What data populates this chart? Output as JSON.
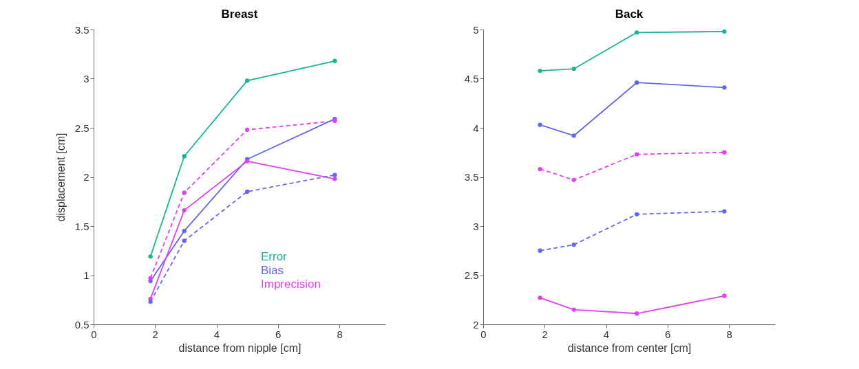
{
  "chart_data": [
    {
      "type": "line",
      "title": "Breast",
      "xlabel": "distance from nipple [cm]",
      "ylabel": "displacement [cm]",
      "x": [
        1.85,
        2.95,
        5,
        7.85
      ],
      "xlim": [
        0,
        9.5
      ],
      "xticks": [
        0,
        2,
        4,
        6,
        8
      ],
      "ylim": [
        0.5,
        3.5
      ],
      "yticks": [
        0.5,
        1,
        1.5,
        2,
        2.5,
        3,
        3.5
      ],
      "grid": false,
      "marker": "circle",
      "legend": "bottom right",
      "series": [
        {
          "name": "Error",
          "color": "#1ab394",
          "line_style": "solid",
          "values": [
            1.19,
            2.21,
            2.98,
            3.18
          ]
        },
        {
          "name": "Bias",
          "color": "#6366f0",
          "line_style": "solid",
          "values": [
            0.94,
            1.45,
            2.18,
            2.59
          ]
        },
        {
          "name": "Imprecision",
          "color": "#e040f0",
          "line_style": "solid",
          "values": [
            0.76,
            1.66,
            2.16,
            1.98
          ]
        },
        {
          "color": "#6366f0",
          "line_style": "dashed",
          "values": [
            0.73,
            1.35,
            1.85,
            2.02
          ]
        },
        {
          "color": "#e040f0",
          "line_style": "dashed",
          "values": [
            0.97,
            1.84,
            2.48,
            2.57
          ]
        }
      ]
    },
    {
      "type": "line",
      "title": "Back",
      "xlabel": "distance from center [cm]",
      "x": [
        1.85,
        2.95,
        5,
        7.85
      ],
      "xlim": [
        0,
        9.5
      ],
      "xticks": [
        0,
        2,
        4,
        6,
        8
      ],
      "ylim": [
        2,
        5
      ],
      "yticks": [
        2,
        2.5,
        3,
        3.5,
        4,
        4.5,
        5
      ],
      "grid": false,
      "marker": "circle",
      "series": [
        {
          "color": "#1ab394",
          "line_style": "solid",
          "values": [
            4.58,
            4.6,
            4.97,
            4.98
          ]
        },
        {
          "color": "#6366f0",
          "line_style": "solid",
          "values": [
            4.03,
            3.92,
            4.46,
            4.41
          ]
        },
        {
          "color": "#e040f0",
          "line_style": "dashed",
          "values": [
            3.58,
            3.47,
            3.73,
            3.75
          ]
        },
        {
          "color": "#6366f0",
          "line_style": "dashed",
          "values": [
            2.75,
            2.81,
            3.12,
            3.15
          ]
        },
        {
          "color": "#e040f0",
          "line_style": "solid",
          "values": [
            2.27,
            2.15,
            2.11,
            2.29
          ]
        }
      ]
    }
  ]
}
